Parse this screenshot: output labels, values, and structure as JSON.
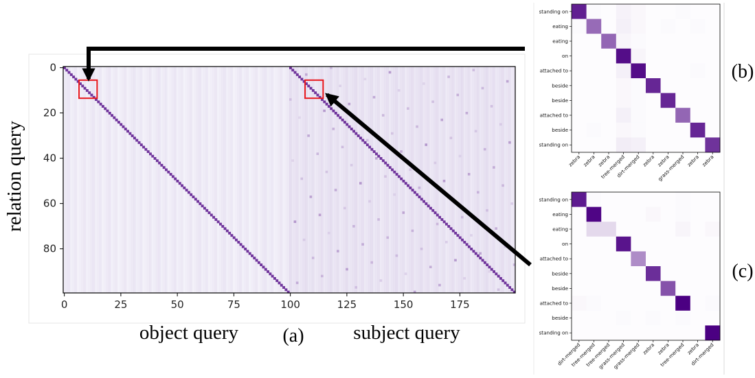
{
  "figure": {
    "ylabel": "relation query",
    "xlabel_left": "object query",
    "xlabel_right": "subject query",
    "panel_a": "(a)",
    "panel_b": "(b)",
    "panel_c": "(c)"
  },
  "chart_data": [
    {
      "id": "a",
      "type": "heatmap",
      "rows": 100,
      "cols": 200,
      "x_ticks": [
        "0",
        "25",
        "50",
        "75",
        "100",
        "125",
        "150",
        "175"
      ],
      "y_ticks": [
        "0",
        "20",
        "40",
        "60",
        "80"
      ],
      "xlim": [
        0,
        199
      ],
      "ylim": [
        0,
        99
      ],
      "colormap": [
        "#ffffff",
        "#4b0082"
      ],
      "diagonals": [
        {
          "x_offset": 0,
          "strength": 0.8
        },
        {
          "x_offset": 100,
          "strength": 0.8
        }
      ],
      "highlight_boxes": [
        {
          "x": [
            7,
            15
          ],
          "y": [
            6,
            14
          ],
          "color": "#e8161b"
        },
        {
          "x": [
            107,
            115
          ],
          "y": [
            6,
            14
          ],
          "color": "#e8161b"
        }
      ]
    },
    {
      "id": "b",
      "type": "heatmap",
      "row_labels": [
        "standing on",
        "eating",
        "eating",
        "on",
        "attached to",
        "beside",
        "beside",
        "attached to",
        "beside",
        "standing on"
      ],
      "col_labels": [
        "zebra",
        "zebra",
        "zebra",
        "tree-merged",
        "dirt-merged",
        "zebra",
        "zebra",
        "grass-merged",
        "zebra",
        "zebra"
      ],
      "colormap": [
        "#ffffff",
        "#4b0082"
      ],
      "values": [
        [
          0.88,
          0.02,
          0.01,
          0.05,
          0.03,
          0.01,
          0.01,
          0.02,
          0.01,
          0.01
        ],
        [
          0.02,
          0.58,
          0.01,
          0.06,
          0.03,
          0.01,
          0.02,
          0.01,
          0.02,
          0.01
        ],
        [
          0.01,
          0.01,
          0.6,
          0.04,
          0.02,
          0.01,
          0.01,
          0.01,
          0.01,
          0.01
        ],
        [
          0.01,
          0.01,
          0.01,
          0.95,
          0.04,
          0.01,
          0.01,
          0.01,
          0.01,
          0.01
        ],
        [
          0.01,
          0.01,
          0.01,
          0.06,
          0.95,
          0.01,
          0.01,
          0.01,
          0.02,
          0.01
        ],
        [
          0.01,
          0.01,
          0.01,
          0.03,
          0.02,
          0.85,
          0.01,
          0.01,
          0.01,
          0.01
        ],
        [
          0.01,
          0.01,
          0.01,
          0.03,
          0.02,
          0.01,
          0.85,
          0.01,
          0.01,
          0.01
        ],
        [
          0.01,
          0.01,
          0.01,
          0.06,
          0.02,
          0.01,
          0.01,
          0.6,
          0.01,
          0.01
        ],
        [
          0.01,
          0.02,
          0.01,
          0.03,
          0.02,
          0.01,
          0.01,
          0.01,
          0.85,
          0.01
        ],
        [
          0.01,
          0.01,
          0.01,
          0.07,
          0.06,
          0.01,
          0.01,
          0.01,
          0.01,
          0.8
        ]
      ]
    },
    {
      "id": "c",
      "type": "heatmap",
      "row_labels": [
        "standing on",
        "eating",
        "eating",
        "on",
        "attached to",
        "beside",
        "beside",
        "attached to",
        "beside",
        "standing on"
      ],
      "col_labels": [
        "dirt-merged",
        "tree-merged",
        "tree-merged",
        "grass-merged",
        "grass-merged",
        "zebra",
        "zebra",
        "tree-merged",
        "zebra",
        "dirt-merged"
      ],
      "colormap": [
        "#ffffff",
        "#4b0082"
      ],
      "values": [
        [
          0.9,
          0.02,
          0.01,
          0.01,
          0.01,
          0.01,
          0.01,
          0.02,
          0.01,
          0.01
        ],
        [
          0.01,
          0.98,
          0.01,
          0.01,
          0.01,
          0.03,
          0.01,
          0.02,
          0.01,
          0.01
        ],
        [
          0.01,
          0.15,
          0.15,
          0.01,
          0.01,
          0.01,
          0.01,
          0.04,
          0.01,
          0.03
        ],
        [
          0.01,
          0.01,
          0.01,
          0.92,
          0.01,
          0.01,
          0.01,
          0.01,
          0.01,
          0.01
        ],
        [
          0.01,
          0.01,
          0.01,
          0.01,
          0.45,
          0.01,
          0.01,
          0.01,
          0.01,
          0.01
        ],
        [
          0.01,
          0.01,
          0.01,
          0.01,
          0.01,
          0.82,
          0.01,
          0.01,
          0.01,
          0.01
        ],
        [
          0.01,
          0.01,
          0.01,
          0.01,
          0.01,
          0.01,
          0.68,
          0.01,
          0.01,
          0.01
        ],
        [
          0.03,
          0.02,
          0.01,
          0.01,
          0.01,
          0.01,
          0.01,
          1.0,
          0.01,
          0.02
        ],
        [
          0.01,
          0.01,
          0.01,
          0.02,
          0.01,
          0.02,
          0.01,
          0.02,
          0.01,
          0.01
        ],
        [
          0.01,
          0.01,
          0.01,
          0.01,
          0.01,
          0.01,
          0.01,
          0.01,
          0.01,
          1.0
        ]
      ]
    }
  ]
}
